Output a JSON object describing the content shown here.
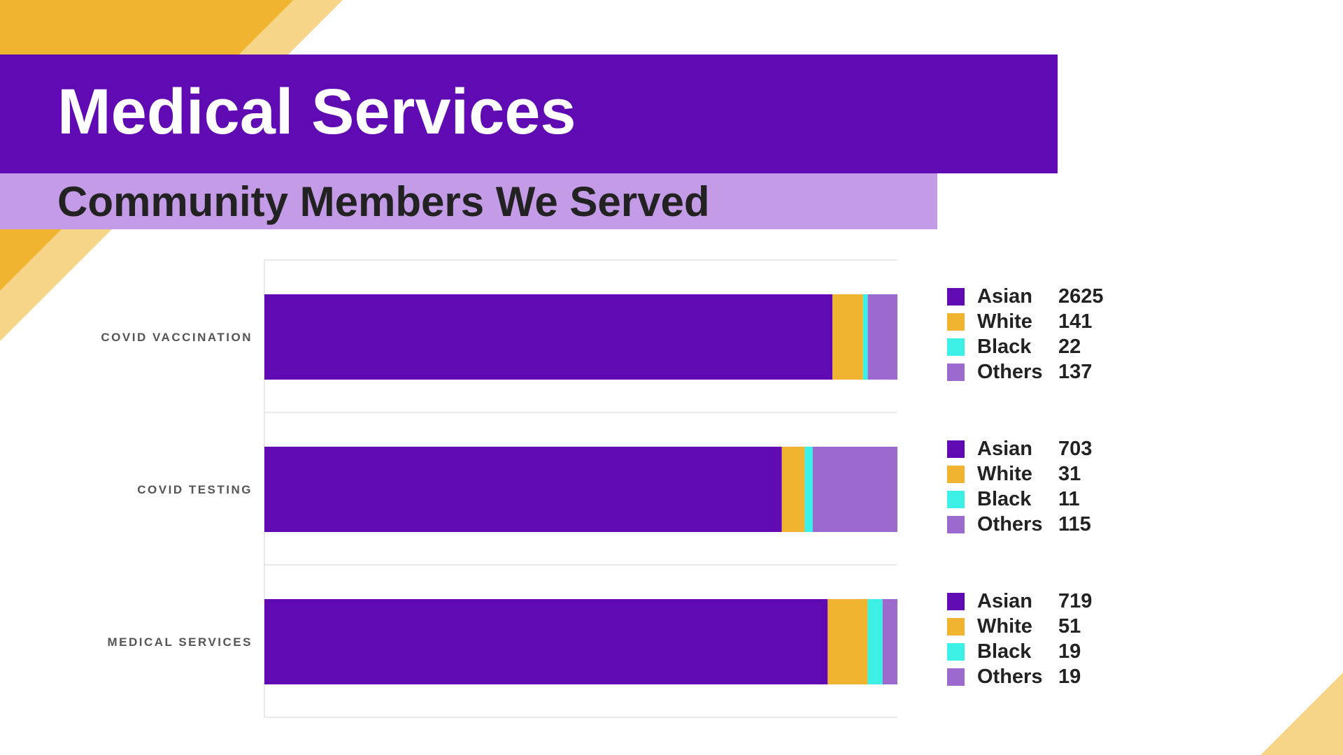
{
  "header": {
    "title": "Medical Services",
    "subtitle": "Community Members We Served"
  },
  "colors": {
    "Asian": "#5f0ab3",
    "White": "#f0b430",
    "Black": "#3df0e6",
    "Others": "#9c69cf",
    "title_band": "#5f0ab3",
    "subtitle_band": "#c39be6",
    "accent_gold": "#f0b430",
    "accent_light_gold": "#f7d588"
  },
  "chart_data": {
    "type": "bar",
    "orientation": "horizontal",
    "stacked": "percent",
    "categories": [
      "COVID VACCINATION",
      "COVID TESTING",
      "MEDICAL SERVICES"
    ],
    "series": [
      {
        "name": "Asian",
        "values": [
          2625,
          703,
          719
        ]
      },
      {
        "name": "White",
        "values": [
          141,
          31,
          51
        ]
      },
      {
        "name": "Black",
        "values": [
          22,
          11,
          19
        ]
      },
      {
        "name": "Others",
        "values": [
          137,
          115,
          19
        ]
      }
    ],
    "grid": true,
    "legend_placement": "right"
  }
}
